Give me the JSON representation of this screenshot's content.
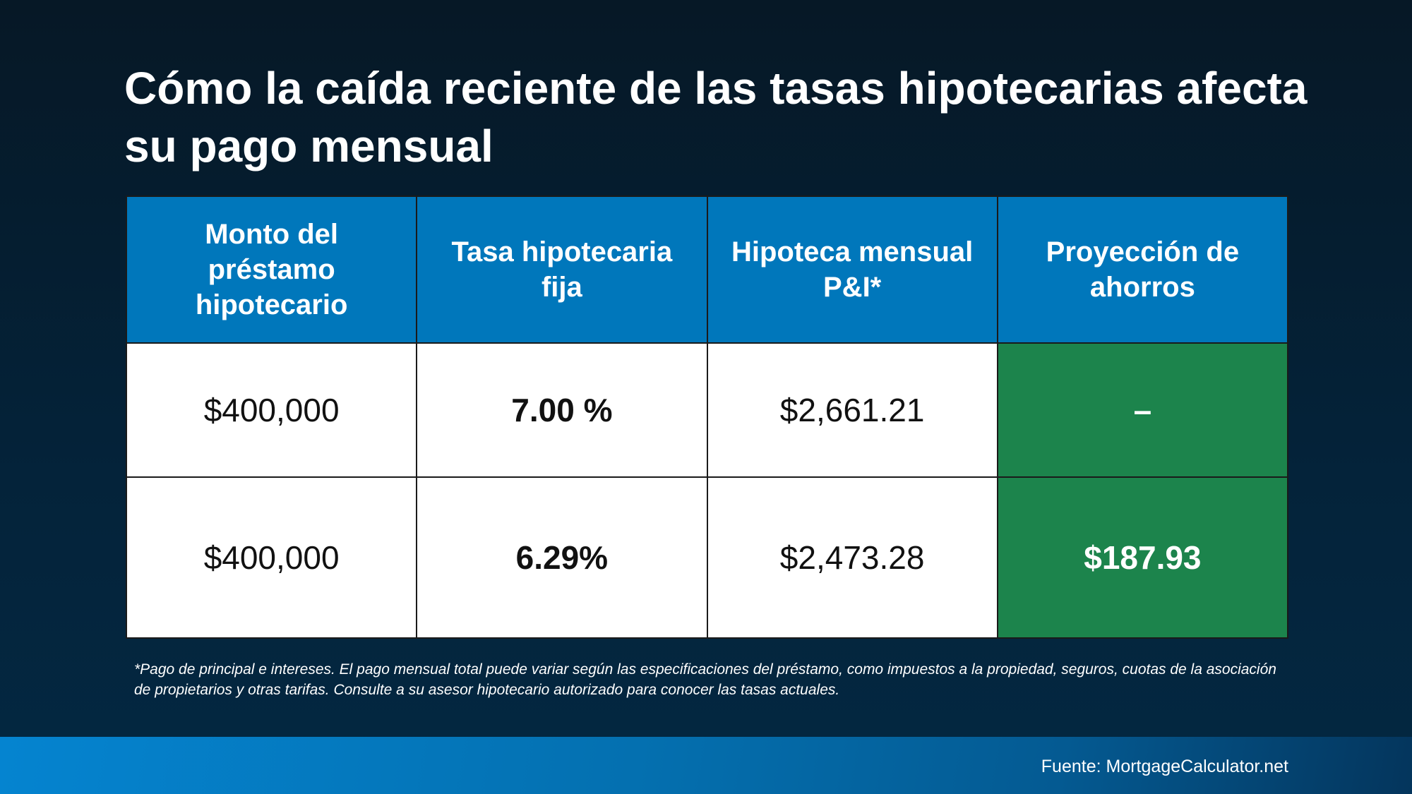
{
  "title": "Cómo la caída reciente de las tasas hipotecarias afecta su pago mensual",
  "table": {
    "headers": [
      "Monto del préstamo hipotecario",
      "Tasa hipotecaria fija",
      "Hipoteca mensual P&I*",
      "Proyección de ahorros"
    ],
    "rows": [
      [
        "$400,000",
        "7.00 %",
        "$2,661.21",
        "–"
      ],
      [
        "$400,000",
        "6.29%",
        "$2,473.28",
        "$187.93"
      ]
    ]
  },
  "footnote": "*Pago de principal e intereses. El pago mensual total puede variar según las especificaciones del préstamo, como impuestos a la propiedad, seguros, cuotas de la asociación de propietarios y otras tarifas. Consulte a su asesor hipotecario autorizado para conocer las tasas actuales.",
  "source": "Fuente: MortgageCalculator.net",
  "colors": {
    "header": "#0077bb",
    "savings": "#1c844c",
    "footer": "#0584d0"
  }
}
